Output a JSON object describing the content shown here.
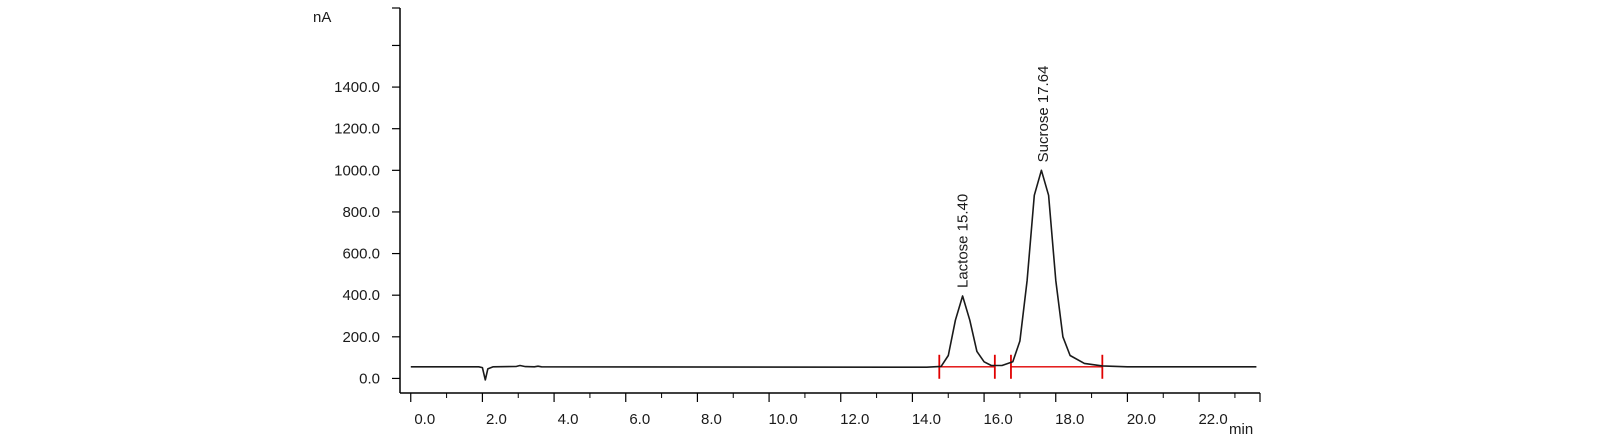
{
  "chart_data": {
    "type": "line",
    "title": "",
    "xlabel": "min",
    "ylabel": "nA",
    "xlim": [
      -0.3,
      23.7
    ],
    "ylim": [
      -70,
      1780
    ],
    "x_ticks": [
      "0.0",
      "2.0",
      "4.0",
      "6.0",
      "8.0",
      "10.0",
      "12.0",
      "14.0",
      "16.0",
      "18.0",
      "20.0",
      "22.0"
    ],
    "x_tick_values": [
      0,
      2,
      4,
      6,
      8,
      10,
      12,
      14,
      16,
      18,
      20,
      22
    ],
    "y_ticks": [
      "0.0",
      "200.0",
      "400.0",
      "600.0",
      "800.0",
      "1000.0",
      "1200.0",
      "1400.0"
    ],
    "y_tick_values": [
      0,
      200,
      400,
      600,
      800,
      1000,
      1200,
      1400
    ],
    "grid": false,
    "series": [
      {
        "color": "#1a1a1a",
        "points": [
          [
            0.0,
            56
          ],
          [
            1.9,
            56
          ],
          [
            2.0,
            52
          ],
          [
            2.08,
            -7
          ],
          [
            2.15,
            46
          ],
          [
            2.3,
            56
          ],
          [
            2.95,
            58
          ],
          [
            3.05,
            62
          ],
          [
            3.2,
            57
          ],
          [
            3.45,
            56
          ],
          [
            3.55,
            59
          ],
          [
            3.65,
            56
          ],
          [
            14.4,
            54
          ],
          [
            14.8,
            58
          ],
          [
            15.0,
            110
          ],
          [
            15.2,
            280
          ],
          [
            15.4,
            396
          ],
          [
            15.6,
            280
          ],
          [
            15.8,
            130
          ],
          [
            16.0,
            80
          ],
          [
            16.2,
            62
          ],
          [
            16.5,
            62
          ],
          [
            16.8,
            80
          ],
          [
            17.0,
            180
          ],
          [
            17.2,
            470
          ],
          [
            17.4,
            880
          ],
          [
            17.6,
            1000
          ],
          [
            17.8,
            880
          ],
          [
            18.0,
            470
          ],
          [
            18.2,
            200
          ],
          [
            18.4,
            110
          ],
          [
            18.8,
            72
          ],
          [
            19.3,
            60
          ],
          [
            20.0,
            56
          ],
          [
            23.6,
            56
          ]
        ]
      }
    ],
    "peaks": [
      {
        "label": "Lactose 15.40",
        "x": 15.4,
        "y": 396
      },
      {
        "label": "Sucrose 17.64",
        "x": 17.64,
        "y": 1000
      }
    ],
    "integration_baselines": [
      {
        "color": "#e00000",
        "x_start": 14.75,
        "x_end": 16.3
      },
      {
        "color": "#e00000",
        "x_start": 16.75,
        "x_end": 19.3
      }
    ],
    "baseline_level": 56
  }
}
